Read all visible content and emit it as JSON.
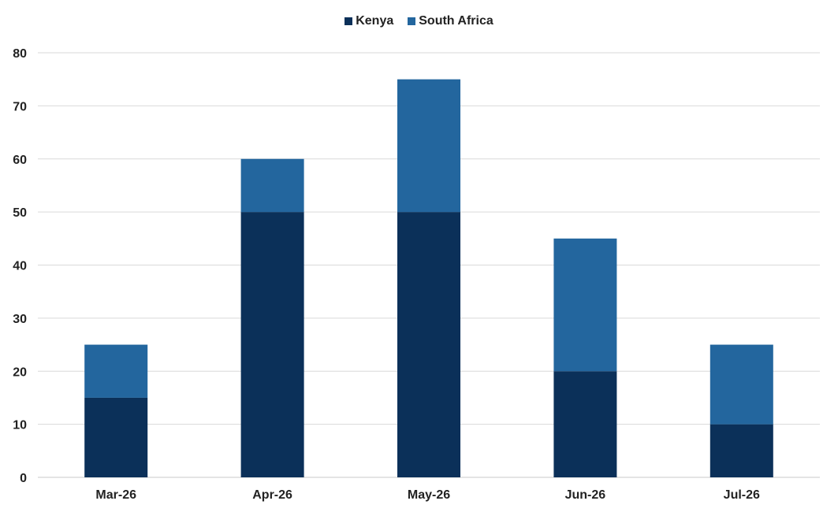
{
  "chart_data": {
    "type": "bar",
    "stacked": true,
    "categories": [
      "Mar-26",
      "Apr-26",
      "May-26",
      "Jun-26",
      "Jul-26"
    ],
    "series": [
      {
        "name": "Kenya",
        "values": [
          15,
          50,
          50,
          20,
          10
        ],
        "color": "#0b3059"
      },
      {
        "name": "South Africa",
        "values": [
          10,
          10,
          25,
          25,
          15
        ],
        "color": "#23669e"
      }
    ],
    "ylim": [
      0,
      80
    ],
    "yticks": [
      0,
      10,
      20,
      30,
      40,
      50,
      60,
      70,
      80
    ],
    "grid": true,
    "legend": "top-center",
    "title": "",
    "xlabel": "",
    "ylabel": ""
  }
}
